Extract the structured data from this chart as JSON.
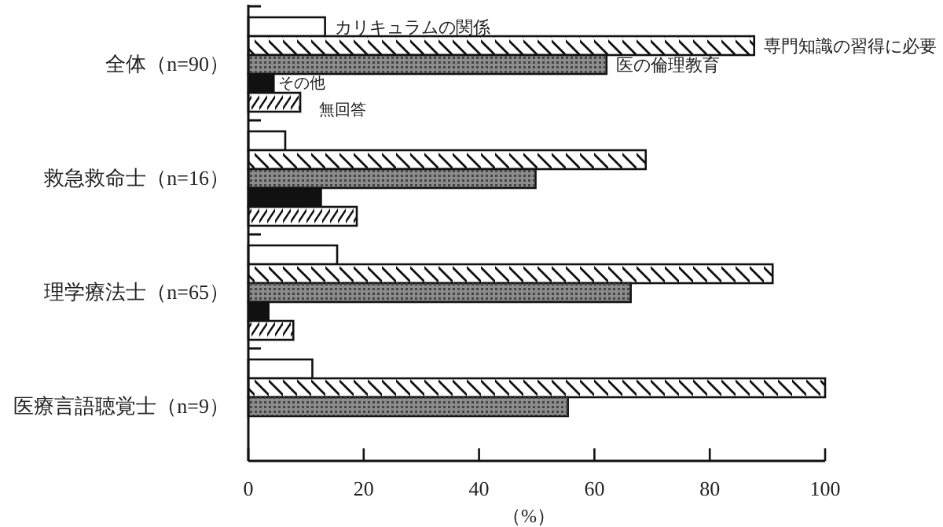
{
  "chart_data": {
    "type": "bar",
    "orientation": "horizontal",
    "xlabel": "（%）",
    "categories": [
      "全体（n=90）",
      "救急救命士（n=16）",
      "理学療法士（n=65）",
      "医療言語聴覚士（n=9）"
    ],
    "series": [
      {
        "name": "カリキュラムの関係",
        "color": "#ffffff",
        "values": [
          13.3,
          6.4,
          15.4,
          11.1
        ]
      },
      {
        "name": "専門知識の習得に必要",
        "color": "#ffffff",
        "values": [
          87.7,
          68.9,
          90.9,
          100
        ]
      },
      {
        "name": "医の倫理教育",
        "color": "#8c8c8c",
        "values": [
          62.1,
          49.8,
          66.3,
          55.4
        ]
      },
      {
        "name": "その他",
        "color": "#111111",
        "values": [
          4.4,
          12.6,
          3.5,
          0
        ]
      },
      {
        "name": "無回答",
        "color": "#ffffff",
        "values": [
          9.0,
          18.8,
          7.8,
          0
        ]
      }
    ],
    "xlim": [
      0,
      100
    ],
    "xticks": [
      0,
      20,
      40,
      60,
      80,
      100
    ],
    "grid": false,
    "legend": false
  }
}
